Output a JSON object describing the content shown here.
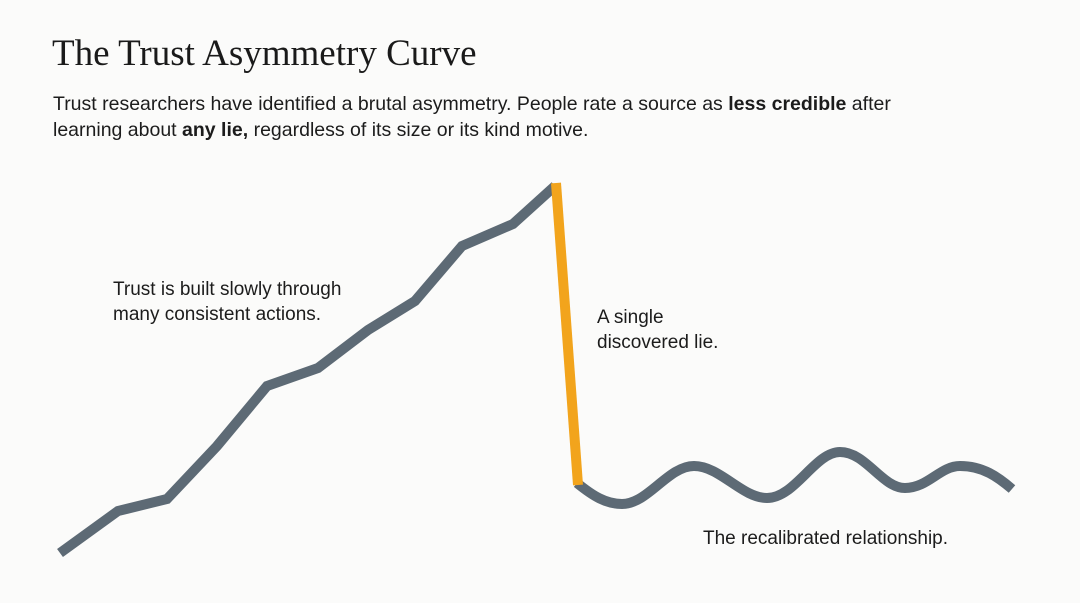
{
  "title": "The Trust Asymmetry Curve",
  "subtitle": {
    "part1": "Trust researchers have identified a brutal asymmetry.  People rate a source as ",
    "bold1": "less credible",
    "part2": " after learning about ",
    "bold2": "any lie,",
    "part3": " regardless of its size or its kind motive."
  },
  "annotations": {
    "build_line1": "Trust is built slowly through",
    "build_line2": "many consistent actions.",
    "lie_line1": "A single",
    "lie_line2": "discovered lie.",
    "recalibrated": "The recalibrated relationship."
  },
  "colors": {
    "trust_line": "#5d6a75",
    "lie_drop": "#f2a41c",
    "background": "#fbfbfa"
  }
}
